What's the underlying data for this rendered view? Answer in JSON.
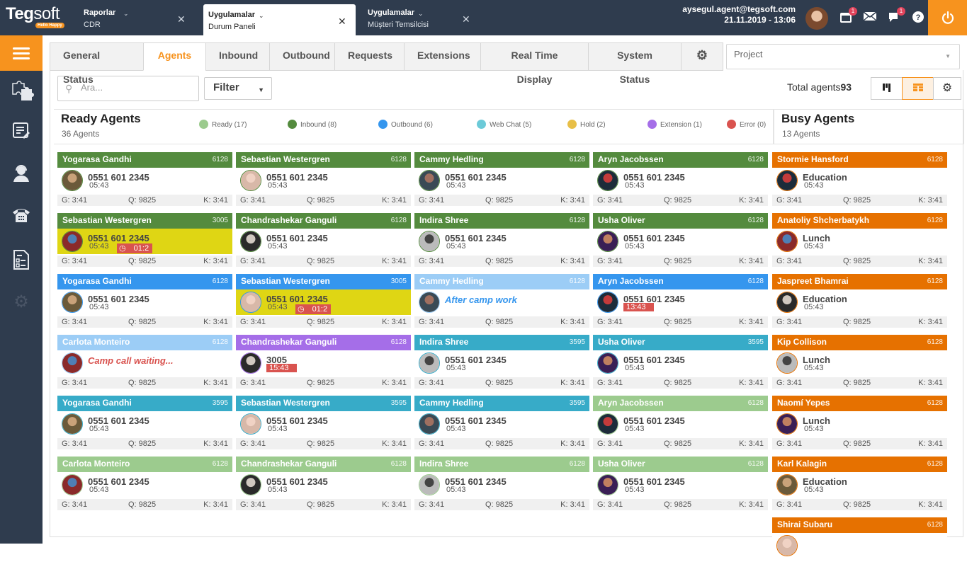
{
  "topbar": {
    "logo": {
      "text_bold": "Teg",
      "text_light": "soft",
      "tagline": "Hello Happy"
    },
    "app_tabs": [
      {
        "title": "Raporlar",
        "subtitle": "CDR",
        "active": false
      },
      {
        "title": "Uygulamalar",
        "subtitle": "Durum Paneli",
        "active": true
      },
      {
        "title": "Uygulamalar",
        "subtitle": "Müşteri Temsilcisi",
        "active": false
      }
    ],
    "user_email": "aysegul.agent@tegsoft.com",
    "datetime": "21.11.2019 - 13:06",
    "calendar_badge": "1",
    "chat_badge": "1",
    "icons": [
      "calendar-icon",
      "mail-icon",
      "chat-icon",
      "help-icon",
      "power-icon"
    ]
  },
  "sidebar": {
    "items": [
      "menu-icon",
      "plugins-icon",
      "report-edit-icon",
      "agent-icon",
      "phone-icon",
      "form-icon",
      "settings-icon"
    ]
  },
  "tabs": [
    {
      "label": "General Status",
      "active": false
    },
    {
      "label": "Agents",
      "active": true
    },
    {
      "label": "Inbound",
      "active": false
    },
    {
      "label": "Outbound",
      "active": false
    },
    {
      "label": "Requests",
      "active": false
    },
    {
      "label": "Extensions",
      "active": false
    },
    {
      "label": "Real Time Display",
      "active": false
    },
    {
      "label": "System Status",
      "active": false
    }
  ],
  "project": {
    "placeholder": "Project"
  },
  "toolbar": {
    "search_placeholder": "Ara...",
    "filter_label": "Filter",
    "total_label": "Total agents",
    "total_value": "93"
  },
  "ready": {
    "title": "Ready Agents",
    "count": "36 Agents"
  },
  "busy": {
    "title": "Busy Agents",
    "count": "13 Agents"
  },
  "legend": [
    {
      "label": "Ready (17)",
      "color": "#9ccb8e"
    },
    {
      "label": "Inbound (8)",
      "color": "#548b3e"
    },
    {
      "label": "Outbound (6)",
      "color": "#3596ee"
    },
    {
      "label": "Web Chat (5)",
      "color": "#6ccad8"
    },
    {
      "label": "Hold (2)",
      "color": "#e8bf47"
    },
    {
      "label": "Extension (1)",
      "color": "#a56ee8"
    },
    {
      "label": "Error (0)",
      "color": "#d9534f"
    }
  ],
  "colors": {
    "inbound": "#548b3e",
    "outbound": "#3596ee",
    "outbound_light": "#9ccdf6",
    "webchat": "#37abc8",
    "ready": "#9ccb8e",
    "extension": "#a56ee8",
    "busy": "#e67100",
    "accent": "#f7931e"
  },
  "cards": [
    {
      "name": "Yogarasa Gandhi",
      "ext": "6128",
      "line1": "0551 601 2345",
      "line2": "05:43",
      "type": "inbound",
      "g": "G: 3:41",
      "q": "Q: 9825",
      "k": "K: 3:41"
    },
    {
      "name": "Sebastian Westergren",
      "ext": "6128",
      "line1": "0551 601 2345",
      "line2": "05:43",
      "type": "inbound",
      "g": "G: 3:41",
      "q": "Q: 9825",
      "k": "K: 3:41"
    },
    {
      "name": "Cammy Hedling",
      "ext": "6128",
      "line1": "0551 601 2345",
      "line2": "05:43",
      "type": "inbound",
      "g": "G: 3:41",
      "q": "Q: 9825",
      "k": "K: 3:41"
    },
    {
      "name": "Aryn Jacobssen",
      "ext": "6128",
      "line1": "0551 601 2345",
      "line2": "05:43",
      "type": "inbound",
      "g": "G: 3:41",
      "q": "Q: 9825",
      "k": "K: 3:41"
    },
    {
      "name": "Sebastian Westergren",
      "ext": "3005",
      "line1": "0551 601 2345",
      "line2": "05:43",
      "timer": "01:2",
      "type": "inbound",
      "hold": true,
      "g": "G: 3:41",
      "q": "Q: 9825",
      "k": "K: 3:41"
    },
    {
      "name": "Chandrashekar Ganguli",
      "ext": "6128",
      "line1": "0551 601 2345",
      "line2": "05:43",
      "type": "inbound",
      "g": "G: 3:41",
      "q": "Q: 9825",
      "k": "K: 3:41"
    },
    {
      "name": "Indira Shree",
      "ext": "6128",
      "line1": "0551 601 2345",
      "line2": "05:43",
      "type": "inbound",
      "g": "G: 3:41",
      "q": "Q: 9825",
      "k": "K: 3:41"
    },
    {
      "name": "Usha Oliver",
      "ext": "6128",
      "line1": "0551 601 2345",
      "line2": "05:43",
      "type": "inbound",
      "g": "G: 3:41",
      "q": "Q: 9825",
      "k": "K: 3:41"
    },
    {
      "name": "Yogarasa Gandhi",
      "ext": "6128",
      "line1": "0551 601 2345",
      "line2": "05:43",
      "type": "outbound",
      "g": "G: 3:41",
      "q": "Q: 9825",
      "k": "K: 3:41"
    },
    {
      "name": "Sebastian Westergren",
      "ext": "3005",
      "line1": "0551 601 2345",
      "line2": "05:43",
      "timer": "01:2",
      "type": "outbound",
      "hold": true,
      "g": "G: 3:41",
      "q": "Q: 9825",
      "k": "K: 3:41"
    },
    {
      "name": "Cammy Hedling",
      "ext": "6128",
      "message": "After camp work",
      "message_color": "#3596ee",
      "type": "outbound_light",
      "g": "G: 3:41",
      "q": "Q: 9825",
      "k": "K: 3:41"
    },
    {
      "name": "Aryn Jacobssen",
      "ext": "6128",
      "line1": "0551 601 2345",
      "line2": "13:43",
      "line2_alert": true,
      "type": "outbound",
      "g": "G: 3:41",
      "q": "Q: 9825",
      "k": "K: 3:41"
    },
    {
      "name": "Carlota Monteiro",
      "ext": "6128",
      "message": "Camp call waiting...",
      "message_color": "#d9534f",
      "type": "outbound_light",
      "g": "G: 3:41",
      "q": "Q: 9825",
      "k": "K: 3:41"
    },
    {
      "name": "Chandrashekar Ganguli",
      "ext": "6128",
      "line1": "3005",
      "line2": "15:43",
      "line2_alert": true,
      "type": "extension",
      "g": "G: 3:41",
      "q": "Q: 9825",
      "k": "K: 3:41"
    },
    {
      "name": "Indira Shree",
      "ext": "3595",
      "line1": "0551 601 2345",
      "line2": "05:43",
      "type": "webchat",
      "g": "G: 3:41",
      "q": "Q: 9825",
      "k": "K: 3:41"
    },
    {
      "name": "Usha Oliver",
      "ext": "3595",
      "line1": "0551 601 2345",
      "line2": "05:43",
      "type": "webchat",
      "g": "G: 3:41",
      "q": "Q: 9825",
      "k": "K: 3:41"
    },
    {
      "name": "Yogarasa Gandhi",
      "ext": "3595",
      "line1": "0551 601 2345",
      "line2": "05:43",
      "type": "webchat",
      "g": "G: 3:41",
      "q": "Q: 9825",
      "k": "K: 3:41"
    },
    {
      "name": "Sebastian Westergren",
      "ext": "3595",
      "line1": "0551 601 2345",
      "line2": "05:43",
      "type": "webchat",
      "g": "G: 3:41",
      "q": "Q: 9825",
      "k": "K: 3:41"
    },
    {
      "name": "Cammy Hedling",
      "ext": "3595",
      "line1": "0551 601 2345",
      "line2": "05:43",
      "type": "webchat",
      "g": "G: 3:41",
      "q": "Q: 9825",
      "k": "K: 3:41"
    },
    {
      "name": "Aryn Jacobssen",
      "ext": "6128",
      "line1": "0551 601 2345",
      "line2": "05:43",
      "type": "ready",
      "g": "G: 3:41",
      "q": "Q: 9825",
      "k": "K: 3:41"
    },
    {
      "name": "Carlota Monteiro",
      "ext": "6128",
      "line1": "0551 601 2345",
      "line2": "05:43",
      "type": "ready",
      "g": "G: 3:41",
      "q": "Q: 9825",
      "k": "K: 3:41"
    },
    {
      "name": "Chandrashekar Ganguli",
      "ext": "6128",
      "line1": "0551 601 2345",
      "line2": "05:43",
      "type": "ready",
      "g": "G: 3:41",
      "q": "Q: 9825",
      "k": "K: 3:41"
    },
    {
      "name": "Indira Shree",
      "ext": "6128",
      "line1": "0551 601 2345",
      "line2": "05:43",
      "type": "ready",
      "g": "G: 3:41",
      "q": "Q: 9825",
      "k": "K: 3:41"
    },
    {
      "name": "Usha Oliver",
      "ext": "6128",
      "line1": "0551 601 2345",
      "line2": "05:43",
      "type": "ready",
      "g": "G: 3:41",
      "q": "Q: 9825",
      "k": "K: 3:41"
    }
  ],
  "busy_cards": [
    {
      "name": "Stormie Hansford",
      "ext": "6128",
      "line1": "Education",
      "line2": "05:43",
      "g": "G: 3:41",
      "q": "Q: 9825",
      "k": "K: 3:41"
    },
    {
      "name": "Anatoliy Shcherbatykh",
      "ext": "6128",
      "line1": "Lunch",
      "line2": "05:43",
      "g": "G: 3:41",
      "q": "Q: 9825",
      "k": "K: 3:41"
    },
    {
      "name": "Jaspreet Bhamrai",
      "ext": "6128",
      "line1": "Education",
      "line2": "05:43",
      "g": "G: 3:41",
      "q": "Q: 9825",
      "k": "K: 3:41"
    },
    {
      "name": "Kip Collison",
      "ext": "6128",
      "line1": "Lunch",
      "line2": "05:43",
      "g": "G: 3:41",
      "q": "Q: 9825",
      "k": "K: 3:41"
    },
    {
      "name": "Naomí Yepes",
      "ext": "6128",
      "line1": "Lunch",
      "line2": "05:43",
      "g": "G: 3:41",
      "q": "Q: 9825",
      "k": "K: 3:41"
    },
    {
      "name": "Karl Kalagin",
      "ext": "6128",
      "line1": "Education",
      "line2": "05:43",
      "g": "G: 3:41",
      "q": "Q: 9825",
      "k": "K: 3:41"
    },
    {
      "name": "Shirai Subaru",
      "ext": "6128",
      "line1": "",
      "line2": "",
      "g": "",
      "q": "",
      "k": ""
    }
  ]
}
